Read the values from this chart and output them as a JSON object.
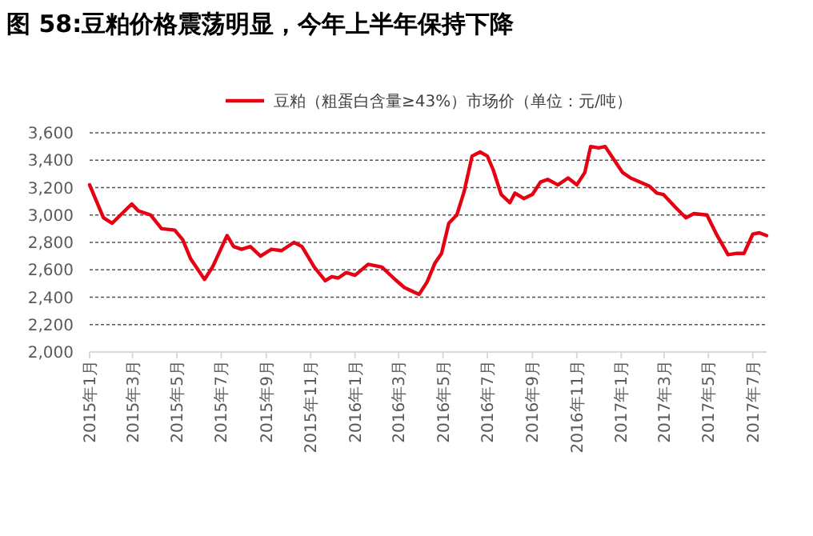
{
  "chart_data": {
    "type": "line",
    "title": "图 58:豆粕价格震荡明显，今年上半年保持下降",
    "x": [
      "2015-01-01",
      "2015-01-20",
      "2015-02-01",
      "2015-02-28",
      "2015-03-09",
      "2015-03-26",
      "2015-04-10",
      "2015-04-28",
      "2015-05-09",
      "2015-05-20",
      "2015-06-08",
      "2015-06-19",
      "2015-07-09",
      "2015-07-18",
      "2015-07-29",
      "2015-08-10",
      "2015-08-24",
      "2015-09-08",
      "2015-09-22",
      "2015-10-09",
      "2015-10-20",
      "2015-11-06",
      "2015-11-21",
      "2015-11-30",
      "2015-12-09",
      "2015-12-20",
      "2016-01-01",
      "2016-01-19",
      "2016-02-07",
      "2016-02-25",
      "2016-03-09",
      "2016-03-29",
      "2016-04-09",
      "2016-04-20",
      "2016-04-29",
      "2016-05-09",
      "2016-05-20",
      "2016-05-30",
      "2016-06-10",
      "2016-06-21",
      "2016-07-01",
      "2016-07-09",
      "2016-07-20",
      "2016-08-01",
      "2016-08-08",
      "2016-08-20",
      "2016-09-01",
      "2016-09-12",
      "2016-09-22",
      "2016-10-06",
      "2016-10-20",
      "2016-11-01",
      "2016-11-12",
      "2016-11-20",
      "2016-12-01",
      "2016-12-10",
      "2016-12-20",
      "2017-01-03",
      "2017-01-14",
      "2017-02-09",
      "2017-02-19",
      "2017-02-28",
      "2017-03-16",
      "2017-03-31",
      "2017-04-11",
      "2017-04-29",
      "2017-05-13",
      "2017-05-28",
      "2017-06-09",
      "2017-06-19",
      "2017-07-01",
      "2017-07-10",
      "2017-07-20"
    ],
    "series": [
      {
        "name": "豆粕（粗蛋白含量≥43%）市场价（单位：元/吨）",
        "color": "#e60012",
        "values": [
          3220,
          2980,
          2940,
          3080,
          3030,
          3000,
          2900,
          2890,
          2820,
          2680,
          2530,
          2620,
          2850,
          2770,
          2750,
          2770,
          2700,
          2750,
          2740,
          2800,
          2770,
          2620,
          2520,
          2550,
          2540,
          2580,
          2560,
          2640,
          2620,
          2530,
          2470,
          2420,
          2510,
          2650,
          2720,
          2940,
          3000,
          3170,
          3430,
          3460,
          3430,
          3330,
          3150,
          3090,
          3160,
          3120,
          3150,
          3240,
          3260,
          3220,
          3270,
          3220,
          3310,
          3500,
          3490,
          3500,
          3420,
          3310,
          3270,
          3210,
          3160,
          3150,
          3060,
          2980,
          3010,
          3000,
          2850,
          2710,
          2720,
          2720,
          2860,
          2870,
          2850
        ]
      }
    ],
    "xlim": [
      "2015-01-01",
      "2017-07-20"
    ],
    "xticks": [
      {
        "value": "2015-01-01",
        "label": "2015年1月"
      },
      {
        "value": "2015-03-01",
        "label": "2015年3月"
      },
      {
        "value": "2015-05-01",
        "label": "2015年5月"
      },
      {
        "value": "2015-07-01",
        "label": "2015年7月"
      },
      {
        "value": "2015-09-01",
        "label": "2015年9月"
      },
      {
        "value": "2015-11-01",
        "label": "2015年11月"
      },
      {
        "value": "2016-01-01",
        "label": "2016年1月"
      },
      {
        "value": "2016-03-01",
        "label": "2016年3月"
      },
      {
        "value": "2016-05-01",
        "label": "2016年5月"
      },
      {
        "value": "2016-07-01",
        "label": "2016年7月"
      },
      {
        "value": "2016-09-01",
        "label": "2016年9月"
      },
      {
        "value": "2016-11-01",
        "label": "2016年11月"
      },
      {
        "value": "2017-01-01",
        "label": "2017年1月"
      },
      {
        "value": "2017-03-01",
        "label": "2017年3月"
      },
      {
        "value": "2017-05-01",
        "label": "2017年5月"
      },
      {
        "value": "2017-07-01",
        "label": "2017年7月"
      }
    ],
    "ylim": [
      2000,
      3600
    ],
    "yticks": [
      {
        "value": 2000,
        "label": "2,000"
      },
      {
        "value": 2200,
        "label": "2,200"
      },
      {
        "value": 2400,
        "label": "2,400"
      },
      {
        "value": 2600,
        "label": "2,600"
      },
      {
        "value": 2800,
        "label": "2,800"
      },
      {
        "value": 3000,
        "label": "3,000"
      },
      {
        "value": 3200,
        "label": "3,200"
      },
      {
        "value": 3400,
        "label": "3,400"
      },
      {
        "value": 3600,
        "label": "3,600"
      }
    ],
    "grid": "y",
    "legend": "top"
  }
}
